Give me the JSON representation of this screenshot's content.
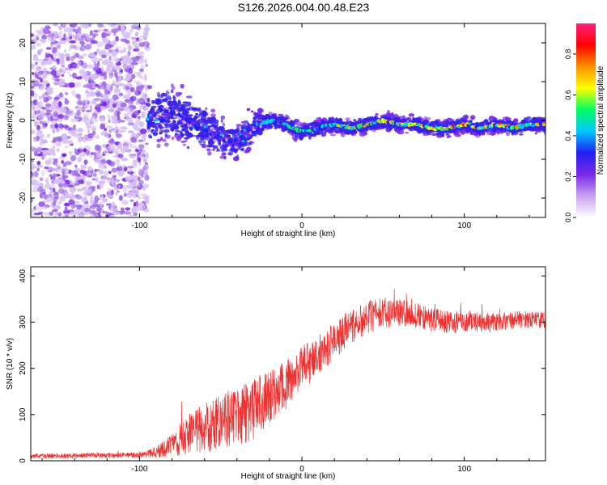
{
  "title": "S126.2026.004.00.48.E23",
  "chart_data": [
    {
      "type": "heatmap",
      "name": "spectrogram",
      "xlabel": "Height of straight line (km)",
      "ylabel": "Frequency (Hz)",
      "xlim": [
        -167,
        150
      ],
      "ylim": [
        -25,
        25
      ],
      "x_ticks": [
        -100,
        0,
        100
      ],
      "x_tick_labels": [
        "-100",
        "0",
        "100"
      ],
      "y_ticks": [
        -20,
        -10,
        0,
        10,
        20
      ],
      "y_tick_labels": [
        "-20",
        "-10",
        "0",
        "10",
        "20"
      ],
      "noise_region_x": [
        -167,
        -95
      ],
      "signal_track": {
        "x": [
          -95,
          -80,
          -65,
          -50,
          -40,
          -30,
          -20,
          -10,
          0,
          10,
          20,
          30,
          40,
          50,
          60,
          70,
          80,
          90,
          100,
          110,
          120,
          130,
          140,
          150
        ],
        "y": [
          0.5,
          2,
          -1,
          -4,
          -6,
          -2,
          0,
          -1,
          -3,
          -2,
          -1,
          -2,
          -1,
          0,
          -1,
          -1,
          -2,
          -2,
          -1,
          -2,
          -1,
          -2,
          -1,
          -1
        ]
      },
      "colorbar": {
        "label": "Normalized spectral amplitude",
        "range": [
          0,
          0.95
        ],
        "ticks": [
          0.0,
          0.2,
          0.4,
          0.6,
          0.8
        ],
        "tick_labels": [
          "0.0",
          "0.2",
          "0.4",
          "0.6",
          "0.8"
        ],
        "colors": [
          "#ffffff",
          "#c8a0f0",
          "#7a28e8",
          "#2020f0",
          "#00c8ff",
          "#00ff60",
          "#ffff00",
          "#ff9000",
          "#ff0000",
          "#ff2080"
        ]
      }
    },
    {
      "type": "line",
      "name": "snr",
      "xlabel": "Height of straight line (km)",
      "ylabel": "SNR (10 * v/v)",
      "xlim": [
        -167,
        150
      ],
      "ylim": [
        0,
        420
      ],
      "x_ticks": [
        -100,
        0,
        100
      ],
      "x_tick_labels": [
        "-100",
        "0",
        "100"
      ],
      "y_ticks": [
        0,
        100,
        200,
        300,
        400
      ],
      "y_tick_labels": [
        "0",
        "100",
        "200",
        "300",
        "400"
      ],
      "color": "#ee3030",
      "envelope": {
        "x": [
          -167,
          -100,
          -90,
          -80,
          -70,
          -60,
          -50,
          -40,
          -30,
          -20,
          -10,
          0,
          10,
          20,
          30,
          40,
          50,
          60,
          70,
          80,
          90,
          100,
          110,
          120,
          130,
          140,
          150
        ],
        "mean": [
          10,
          12,
          18,
          35,
          55,
          70,
          85,
          95,
          110,
          140,
          160,
          200,
          230,
          260,
          290,
          310,
          320,
          320,
          315,
          305,
          300,
          300,
          300,
          300,
          305,
          305,
          305
        ],
        "spread": [
          5,
          6,
          12,
          25,
          45,
          55,
          60,
          65,
          65,
          60,
          55,
          50,
          45,
          40,
          40,
          35,
          35,
          30,
          28,
          26,
          24,
          22,
          22,
          20,
          20,
          18,
          18
        ]
      }
    }
  ]
}
